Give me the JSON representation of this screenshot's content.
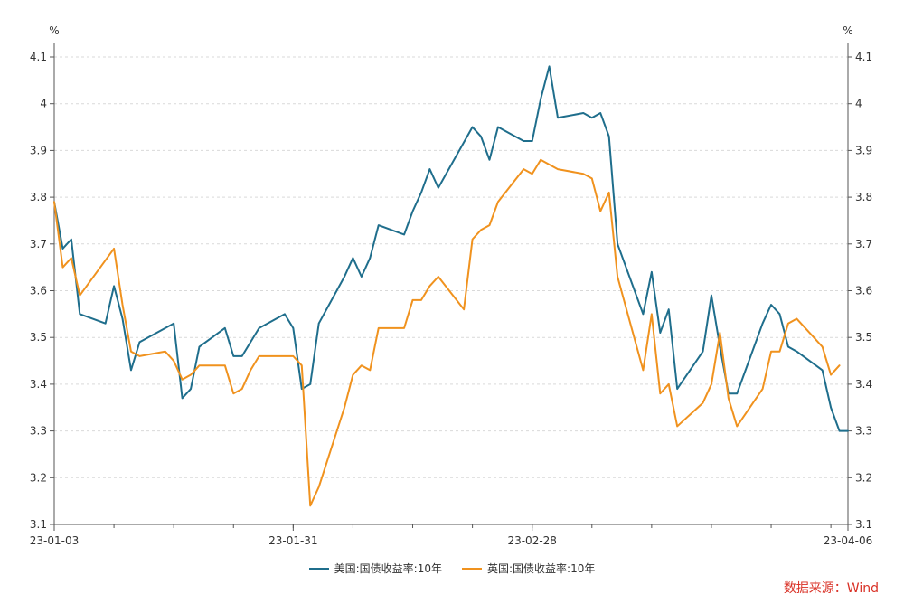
{
  "chart_data": {
    "type": "line",
    "unit_left": "%",
    "unit_right": "%",
    "ylim": [
      3.1,
      4.1
    ],
    "yticks": [
      3.1,
      3.2,
      3.3,
      3.4,
      3.5,
      3.6,
      3.7,
      3.8,
      3.9,
      4,
      4.1
    ],
    "xlim": [
      "2023-01-03",
      "2023-04-06"
    ],
    "xtick_labels": [
      {
        "date": "2023-01-03",
        "label": "23-01-03"
      },
      {
        "date": "2023-01-31",
        "label": "23-01-31"
      },
      {
        "date": "2023-02-28",
        "label": "23-02-28"
      },
      {
        "date": "2023-04-06",
        "label": "23-04-06"
      }
    ],
    "grid": true,
    "legend_position": "bottom",
    "series": [
      {
        "name": "美国:国债收益率:10年",
        "color": "#1f6e8c",
        "points": [
          [
            "2023-01-03",
            3.79
          ],
          [
            "2023-01-04",
            3.69
          ],
          [
            "2023-01-05",
            3.71
          ],
          [
            "2023-01-06",
            3.55
          ],
          [
            "2023-01-09",
            3.53
          ],
          [
            "2023-01-10",
            3.61
          ],
          [
            "2023-01-11",
            3.54
          ],
          [
            "2023-01-12",
            3.43
          ],
          [
            "2023-01-13",
            3.49
          ],
          [
            "2023-01-17",
            3.53
          ],
          [
            "2023-01-18",
            3.37
          ],
          [
            "2023-01-19",
            3.39
          ],
          [
            "2023-01-20",
            3.48
          ],
          [
            "2023-01-23",
            3.52
          ],
          [
            "2023-01-24",
            3.46
          ],
          [
            "2023-01-25",
            3.46
          ],
          [
            "2023-01-26",
            3.49
          ],
          [
            "2023-01-27",
            3.52
          ],
          [
            "2023-01-30",
            3.55
          ],
          [
            "2023-01-31",
            3.52
          ],
          [
            "2023-02-01",
            3.39
          ],
          [
            "2023-02-02",
            3.4
          ],
          [
            "2023-02-03",
            3.53
          ],
          [
            "2023-02-06",
            3.63
          ],
          [
            "2023-02-07",
            3.67
          ],
          [
            "2023-02-08",
            3.63
          ],
          [
            "2023-02-09",
            3.67
          ],
          [
            "2023-02-10",
            3.74
          ],
          [
            "2023-02-13",
            3.72
          ],
          [
            "2023-02-14",
            3.77
          ],
          [
            "2023-02-15",
            3.81
          ],
          [
            "2023-02-16",
            3.86
          ],
          [
            "2023-02-17",
            3.82
          ],
          [
            "2023-02-21",
            3.95
          ],
          [
            "2023-02-22",
            3.93
          ],
          [
            "2023-02-23",
            3.88
          ],
          [
            "2023-02-24",
            3.95
          ],
          [
            "2023-02-27",
            3.92
          ],
          [
            "2023-02-28",
            3.92
          ],
          [
            "2023-03-01",
            4.01
          ],
          [
            "2023-03-02",
            4.08
          ],
          [
            "2023-03-03",
            3.97
          ],
          [
            "2023-03-06",
            3.98
          ],
          [
            "2023-03-07",
            3.97
          ],
          [
            "2023-03-08",
            3.98
          ],
          [
            "2023-03-09",
            3.93
          ],
          [
            "2023-03-10",
            3.7
          ],
          [
            "2023-03-13",
            3.55
          ],
          [
            "2023-03-14",
            3.64
          ],
          [
            "2023-03-15",
            3.51
          ],
          [
            "2023-03-16",
            3.56
          ],
          [
            "2023-03-17",
            3.39
          ],
          [
            "2023-03-20",
            3.47
          ],
          [
            "2023-03-21",
            3.59
          ],
          [
            "2023-03-22",
            3.48
          ],
          [
            "2023-03-23",
            3.38
          ],
          [
            "2023-03-24",
            3.38
          ],
          [
            "2023-03-27",
            3.53
          ],
          [
            "2023-03-28",
            3.57
          ],
          [
            "2023-03-29",
            3.55
          ],
          [
            "2023-03-30",
            3.48
          ],
          [
            "2023-03-31",
            3.47
          ],
          [
            "2023-04-03",
            3.43
          ],
          [
            "2023-04-04",
            3.35
          ],
          [
            "2023-04-05",
            3.3
          ],
          [
            "2023-04-06",
            3.3
          ]
        ]
      },
      {
        "name": "英国:国债收益率:10年",
        "color": "#f0921e",
        "points": [
          [
            "2023-01-03",
            3.79
          ],
          [
            "2023-01-04",
            3.65
          ],
          [
            "2023-01-05",
            3.67
          ],
          [
            "2023-01-06",
            3.59
          ],
          [
            "2023-01-10",
            3.69
          ],
          [
            "2023-01-11",
            3.57
          ],
          [
            "2023-01-12",
            3.47
          ],
          [
            "2023-01-13",
            3.46
          ],
          [
            "2023-01-16",
            3.47
          ],
          [
            "2023-01-17",
            3.45
          ],
          [
            "2023-01-18",
            3.41
          ],
          [
            "2023-01-19",
            3.42
          ],
          [
            "2023-01-20",
            3.44
          ],
          [
            "2023-01-23",
            3.44
          ],
          [
            "2023-01-24",
            3.38
          ],
          [
            "2023-01-25",
            3.39
          ],
          [
            "2023-01-26",
            3.43
          ],
          [
            "2023-01-27",
            3.46
          ],
          [
            "2023-01-30",
            3.46
          ],
          [
            "2023-01-31",
            3.46
          ],
          [
            "2023-02-01",
            3.44
          ],
          [
            "2023-02-02",
            3.14
          ],
          [
            "2023-02-03",
            3.18
          ],
          [
            "2023-02-06",
            3.35
          ],
          [
            "2023-02-07",
            3.42
          ],
          [
            "2023-02-08",
            3.44
          ],
          [
            "2023-02-09",
            3.43
          ],
          [
            "2023-02-10",
            3.52
          ],
          [
            "2023-02-13",
            3.52
          ],
          [
            "2023-02-14",
            3.58
          ],
          [
            "2023-02-15",
            3.58
          ],
          [
            "2023-02-16",
            3.61
          ],
          [
            "2023-02-17",
            3.63
          ],
          [
            "2023-02-20",
            3.56
          ],
          [
            "2023-02-21",
            3.71
          ],
          [
            "2023-02-22",
            3.73
          ],
          [
            "2023-02-23",
            3.74
          ],
          [
            "2023-02-24",
            3.79
          ],
          [
            "2023-02-27",
            3.86
          ],
          [
            "2023-02-28",
            3.85
          ],
          [
            "2023-03-01",
            3.88
          ],
          [
            "2023-03-03",
            3.86
          ],
          [
            "2023-03-06",
            3.85
          ],
          [
            "2023-03-07",
            3.84
          ],
          [
            "2023-03-08",
            3.77
          ],
          [
            "2023-03-09",
            3.81
          ],
          [
            "2023-03-10",
            3.63
          ],
          [
            "2023-03-13",
            3.43
          ],
          [
            "2023-03-14",
            3.55
          ],
          [
            "2023-03-15",
            3.38
          ],
          [
            "2023-03-16",
            3.4
          ],
          [
            "2023-03-17",
            3.31
          ],
          [
            "2023-03-20",
            3.36
          ],
          [
            "2023-03-21",
            3.4
          ],
          [
            "2023-03-22",
            3.51
          ],
          [
            "2023-03-23",
            3.37
          ],
          [
            "2023-03-24",
            3.31
          ],
          [
            "2023-03-27",
            3.39
          ],
          [
            "2023-03-28",
            3.47
          ],
          [
            "2023-03-29",
            3.47
          ],
          [
            "2023-03-30",
            3.53
          ],
          [
            "2023-03-31",
            3.54
          ],
          [
            "2023-04-03",
            3.48
          ],
          [
            "2023-04-04",
            3.42
          ],
          [
            "2023-04-05",
            3.44
          ]
        ]
      }
    ]
  },
  "source_text": "数据来源：Wind"
}
